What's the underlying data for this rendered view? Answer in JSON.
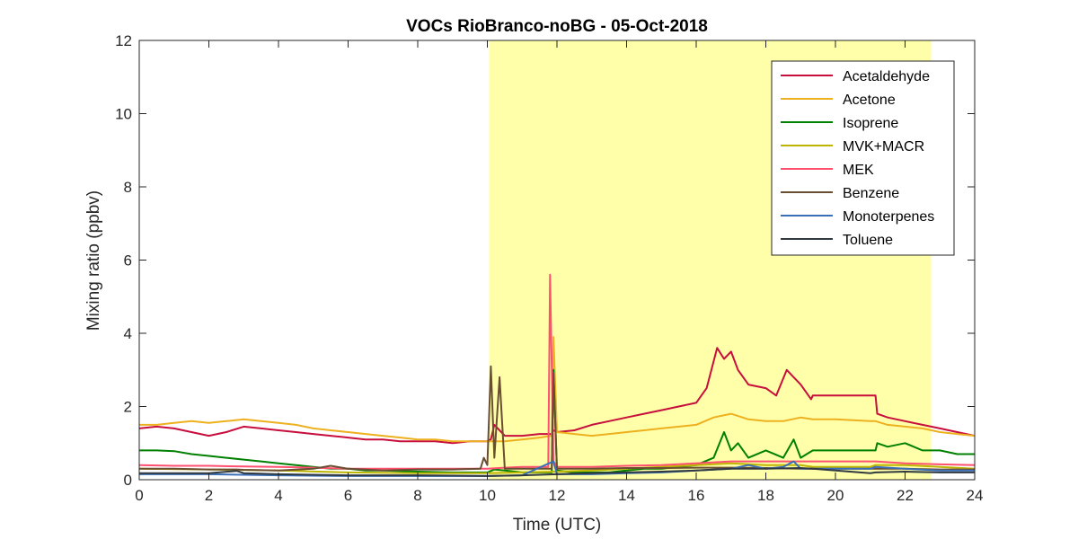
{
  "chart_data": {
    "type": "line",
    "title": "VOCs RioBranco-noBG - 05-Oct-2018",
    "xlabel": "Time (UTC)",
    "ylabel": "Mixing ratio (ppbv)",
    "xlim": [
      0,
      24
    ],
    "ylim": [
      0,
      12
    ],
    "xticks": [
      "0",
      "2",
      "4",
      "6",
      "8",
      "10",
      "12",
      "14",
      "16",
      "18",
      "20",
      "22",
      "24"
    ],
    "yticks": [
      "0",
      "2",
      "4",
      "6",
      "8",
      "10",
      "12"
    ],
    "grid": false,
    "legend_position": "top-right",
    "highlight_region": {
      "x0": 10.05,
      "x1": 22.75,
      "color": "#ffffaa"
    },
    "series": [
      {
        "name": "Acetaldehyde",
        "color": "#c80e3c",
        "x": [
          0,
          0.5,
          1,
          1.5,
          2,
          2.5,
          3,
          3.5,
          4,
          4.5,
          5,
          5.5,
          6,
          6.5,
          7,
          7.5,
          8,
          8.5,
          9,
          9.5,
          10,
          10.1,
          10.2,
          10.4,
          10.5,
          11,
          11.5,
          11.85,
          11.9,
          12,
          12.5,
          13,
          13.5,
          14,
          14.5,
          15,
          15.5,
          16,
          16.3,
          16.6,
          16.8,
          17,
          17.2,
          17.5,
          18,
          18.3,
          18.6,
          18.8,
          19,
          19.3,
          19.35,
          20,
          21,
          21.15,
          21.2,
          21.5,
          22,
          22.5,
          23,
          23.5,
          24
        ],
        "y": [
          1.4,
          1.45,
          1.4,
          1.3,
          1.2,
          1.3,
          1.45,
          1.4,
          1.35,
          1.3,
          1.25,
          1.2,
          1.15,
          1.1,
          1.1,
          1.05,
          1.05,
          1.05,
          1.0,
          1.05,
          1.05,
          1.1,
          1.5,
          1.3,
          1.2,
          1.2,
          1.25,
          1.25,
          1.35,
          1.3,
          1.35,
          1.5,
          1.6,
          1.7,
          1.8,
          1.9,
          2.0,
          2.1,
          2.5,
          3.6,
          3.3,
          3.5,
          3.0,
          2.6,
          2.5,
          2.3,
          3.0,
          2.8,
          2.6,
          2.2,
          2.3,
          2.3,
          2.3,
          2.3,
          1.8,
          1.7,
          1.6,
          1.5,
          1.4,
          1.3,
          1.2
        ]
      },
      {
        "name": "Acetone",
        "color": "#edb120",
        "x": [
          0,
          0.5,
          1,
          1.5,
          2,
          2.5,
          3,
          3.5,
          4,
          4.5,
          5,
          5.5,
          6,
          6.5,
          7,
          7.5,
          8,
          8.5,
          9,
          9.5,
          10,
          10.5,
          11,
          11.5,
          11.85,
          11.9,
          12,
          12.5,
          13,
          13.5,
          14,
          14.5,
          15,
          15.5,
          16,
          16.5,
          17,
          17.5,
          18,
          18.5,
          19,
          19.35,
          20,
          21,
          21.15,
          21.5,
          22,
          22.5,
          23,
          23.5,
          24
        ],
        "y": [
          1.5,
          1.5,
          1.55,
          1.6,
          1.55,
          1.6,
          1.65,
          1.6,
          1.55,
          1.5,
          1.4,
          1.35,
          1.3,
          1.25,
          1.2,
          1.15,
          1.1,
          1.1,
          1.05,
          1.05,
          1.05,
          1.05,
          1.1,
          1.15,
          1.2,
          3.9,
          1.3,
          1.25,
          1.2,
          1.25,
          1.3,
          1.35,
          1.4,
          1.45,
          1.5,
          1.7,
          1.8,
          1.65,
          1.6,
          1.6,
          1.7,
          1.65,
          1.65,
          1.6,
          1.6,
          1.5,
          1.45,
          1.4,
          1.3,
          1.25,
          1.2
        ]
      },
      {
        "name": "Isoprene",
        "color": "#008000",
        "x": [
          0,
          0.5,
          1,
          1.5,
          2,
          2.5,
          3,
          3.5,
          4,
          4.5,
          5,
          5.5,
          6,
          6.5,
          7,
          8,
          9,
          10,
          10.2,
          10.5,
          11,
          11.5,
          11.85,
          11.9,
          12,
          12.5,
          13,
          13.5,
          14,
          14.5,
          15,
          15.5,
          16,
          16.5,
          16.8,
          17,
          17.2,
          17.5,
          18,
          18.5,
          18.8,
          19,
          19.35,
          20,
          21,
          21.15,
          21.2,
          21.5,
          22,
          22.5,
          23,
          23.5,
          24
        ],
        "y": [
          0.8,
          0.8,
          0.78,
          0.7,
          0.65,
          0.6,
          0.55,
          0.5,
          0.45,
          0.4,
          0.35,
          0.3,
          0.3,
          0.25,
          0.25,
          0.22,
          0.2,
          0.2,
          0.28,
          0.25,
          0.2,
          0.2,
          0.2,
          3.0,
          0.25,
          0.2,
          0.2,
          0.2,
          0.25,
          0.3,
          0.3,
          0.35,
          0.4,
          0.6,
          1.3,
          0.8,
          1.0,
          0.6,
          0.8,
          0.6,
          1.1,
          0.6,
          0.8,
          0.8,
          0.8,
          0.8,
          1.0,
          0.9,
          1.0,
          0.8,
          0.8,
          0.7,
          0.7
        ]
      },
      {
        "name": "MVK+MACR",
        "color": "#bdb500",
        "x": [
          0,
          2,
          4,
          6,
          8,
          10,
          11,
          12,
          13,
          14,
          15,
          16,
          17,
          18,
          19,
          19.35,
          21,
          21.15,
          22,
          23,
          24
        ],
        "y": [
          0.3,
          0.28,
          0.25,
          0.2,
          0.18,
          0.18,
          0.2,
          0.22,
          0.25,
          0.3,
          0.35,
          0.4,
          0.45,
          0.4,
          0.4,
          0.35,
          0.35,
          0.4,
          0.4,
          0.35,
          0.3
        ]
      },
      {
        "name": "MEK",
        "color": "#ff5070",
        "x": [
          0,
          1,
          2,
          3,
          4,
          5,
          6,
          7,
          8,
          9,
          10,
          10.5,
          11,
          11.75,
          11.8,
          11.9,
          12,
          13,
          14,
          15,
          16,
          17,
          18,
          19,
          19.35,
          21,
          21.15,
          22,
          23,
          24
        ],
        "y": [
          0.4,
          0.38,
          0.38,
          0.36,
          0.35,
          0.33,
          0.3,
          0.3,
          0.3,
          0.3,
          0.3,
          0.33,
          0.35,
          0.35,
          5.6,
          0.5,
          0.35,
          0.35,
          0.38,
          0.4,
          0.45,
          0.5,
          0.5,
          0.5,
          0.5,
          0.5,
          0.5,
          0.45,
          0.42,
          0.4
        ]
      },
      {
        "name": "Benzene",
        "color": "#6a4e32",
        "x": [
          0,
          1,
          2,
          2.8,
          3,
          4,
          5,
          5.5,
          6,
          7,
          8,
          9,
          9.8,
          9.9,
          10,
          10.1,
          10.2,
          10.35,
          10.5,
          11,
          11.85,
          11.9,
          12,
          13,
          14,
          15,
          16,
          17,
          18,
          19,
          19.35,
          21,
          21.15,
          22,
          23,
          24
        ],
        "y": [
          0.3,
          0.3,
          0.28,
          0.28,
          0.27,
          0.25,
          0.3,
          0.38,
          0.3,
          0.25,
          0.28,
          0.28,
          0.3,
          0.6,
          0.4,
          3.1,
          0.6,
          2.8,
          0.3,
          0.3,
          0.3,
          2.9,
          0.3,
          0.3,
          0.32,
          0.32,
          0.33,
          0.33,
          0.32,
          0.3,
          0.3,
          0.3,
          0.3,
          0.3,
          0.28,
          0.28
        ]
      },
      {
        "name": "Monoterpenes",
        "color": "#3a6fb8",
        "x": [
          0,
          2,
          4,
          6,
          8,
          10,
          11,
          11.9,
          12,
          13,
          14,
          15,
          16,
          17,
          17.5,
          18,
          18.5,
          18.8,
          19,
          19.35,
          21,
          21.15,
          22,
          23,
          24
        ],
        "y": [
          0.15,
          0.15,
          0.12,
          0.1,
          0.1,
          0.1,
          0.12,
          0.5,
          0.15,
          0.15,
          0.18,
          0.2,
          0.25,
          0.3,
          0.4,
          0.3,
          0.35,
          0.5,
          0.3,
          0.3,
          0.3,
          0.35,
          0.3,
          0.25,
          0.25
        ]
      },
      {
        "name": "Toluene",
        "color": "#303a40",
        "x": [
          0,
          2,
          2.8,
          3,
          4,
          6,
          8,
          10,
          11,
          12,
          13,
          14,
          15,
          16,
          17,
          18,
          19,
          19.35,
          21,
          21.15,
          22,
          23,
          24
        ],
        "y": [
          0.18,
          0.18,
          0.24,
          0.18,
          0.15,
          0.12,
          0.12,
          0.1,
          0.12,
          0.15,
          0.18,
          0.2,
          0.22,
          0.25,
          0.3,
          0.3,
          0.32,
          0.3,
          0.18,
          0.2,
          0.22,
          0.2,
          0.2
        ]
      }
    ]
  }
}
